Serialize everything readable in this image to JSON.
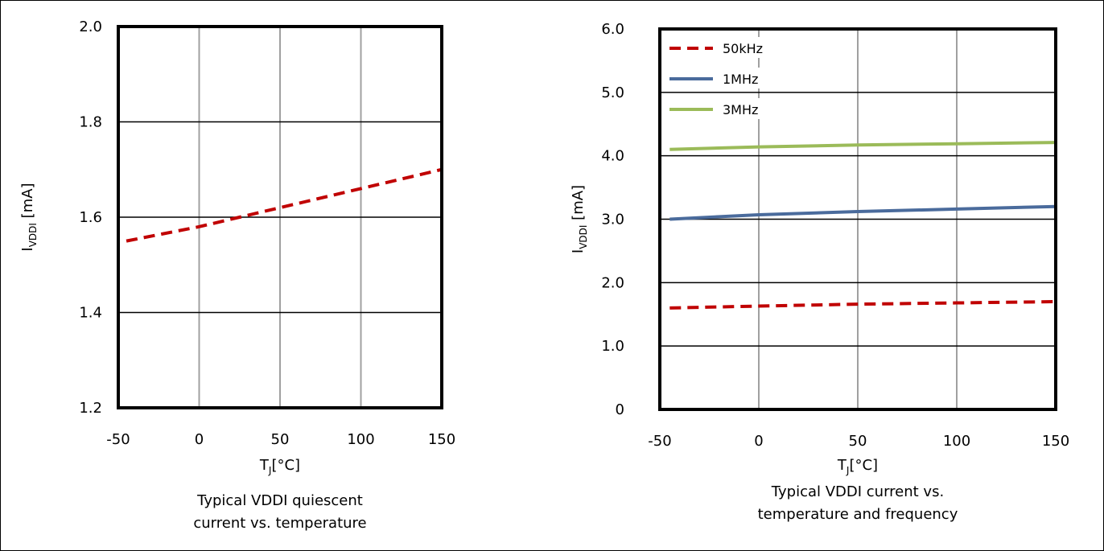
{
  "chart_data": [
    {
      "type": "line",
      "caption": [
        "Typical VDDI quiescent",
        "current vs. temperature"
      ],
      "xlabel": {
        "main": "T",
        "sub": "J",
        "rest": "[°C]"
      },
      "ylabel": {
        "main": "I",
        "sub": "VDDI",
        "rest": " [mA]"
      },
      "xlim": [
        -50,
        150
      ],
      "ylim": [
        1.2,
        2.0
      ],
      "x_ticks": [
        -50,
        0,
        50,
        100,
        150
      ],
      "x_tick_labels": [
        "-50",
        "0",
        "50",
        "100",
        "150"
      ],
      "y_ticks": [
        1.2,
        1.4,
        1.6,
        1.8,
        2.0
      ],
      "y_tick_labels": [
        "1.2",
        "1.4",
        "1.6",
        "1.8",
        "2.0"
      ],
      "grid": true,
      "legend": null,
      "series": [
        {
          "color": "#c00000",
          "dash": true,
          "x": [
            -45,
            0,
            50,
            100,
            150
          ],
          "values": [
            1.55,
            1.58,
            1.62,
            1.66,
            1.7
          ]
        }
      ]
    },
    {
      "type": "line",
      "caption": [
        "Typical VDDI current vs.",
        "temperature and frequency"
      ],
      "xlabel": {
        "main": "T",
        "sub": "J",
        "rest": "[°C]"
      },
      "ylabel": {
        "main": "I",
        "sub": "VDDI",
        "rest": " [mA]"
      },
      "xlim": [
        -50,
        150
      ],
      "ylim": [
        0,
        6.0
      ],
      "x_ticks": [
        -50,
        0,
        50,
        100,
        150
      ],
      "x_tick_labels": [
        "-50",
        "0",
        "50",
        "100",
        "150"
      ],
      "y_ticks": [
        0,
        1.0,
        2.0,
        3.0,
        4.0,
        5.0,
        6.0
      ],
      "y_tick_labels": [
        "0",
        "1.0",
        "2.0",
        "3.0",
        "4.0",
        "5.0",
        "6.0"
      ],
      "grid": true,
      "legend": "top-left",
      "series": [
        {
          "name": "50kHz",
          "color": "#c00000",
          "dash": true,
          "x": [
            -45,
            0,
            50,
            100,
            150
          ],
          "values": [
            1.6,
            1.63,
            1.66,
            1.68,
            1.7
          ]
        },
        {
          "name": "1MHz",
          "color": "#4a6b9c",
          "dash": false,
          "x": [
            -45,
            0,
            50,
            100,
            150
          ],
          "values": [
            3.0,
            3.07,
            3.12,
            3.16,
            3.2
          ]
        },
        {
          "name": "3MHz",
          "color": "#9bbb59",
          "dash": false,
          "x": [
            -45,
            0,
            50,
            100,
            150
          ],
          "values": [
            4.1,
            4.14,
            4.17,
            4.19,
            4.21
          ]
        }
      ]
    }
  ]
}
